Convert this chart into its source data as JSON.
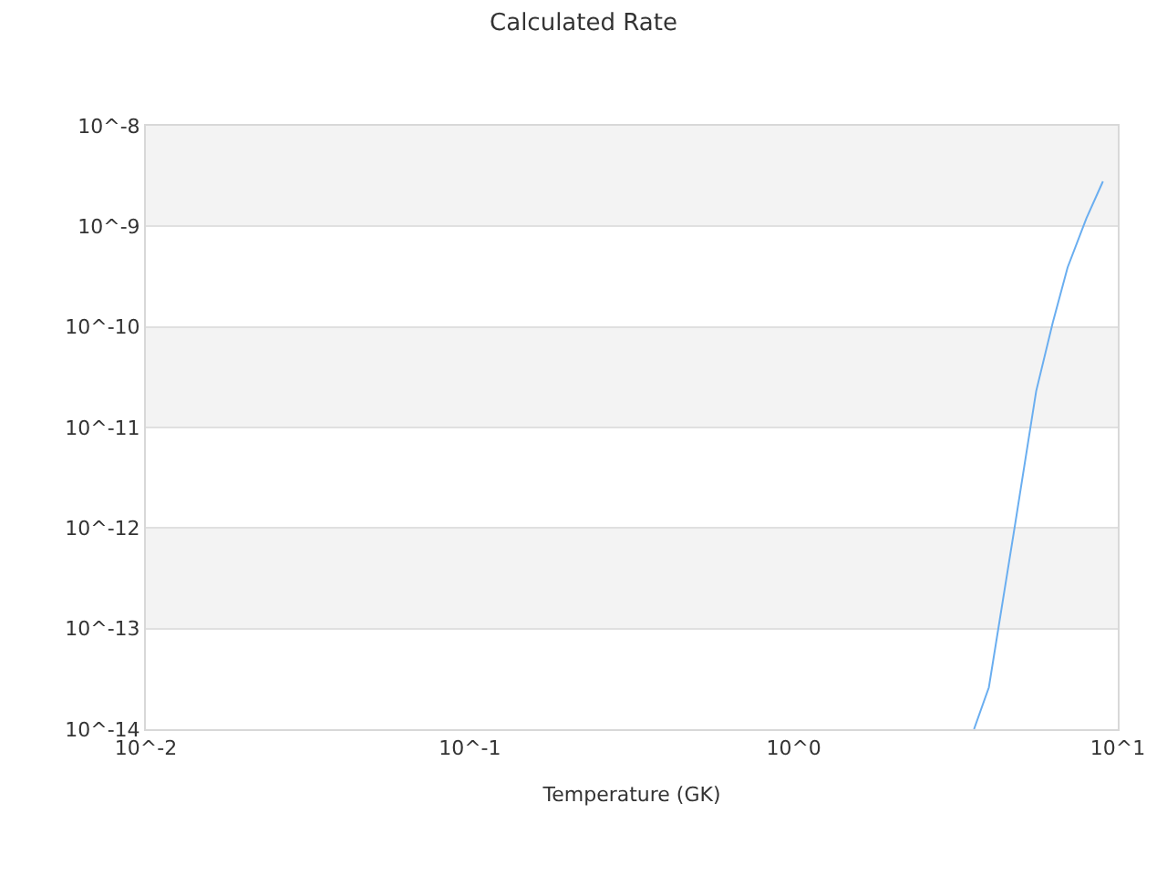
{
  "chart_data": {
    "type": "line",
    "title": "Calculated Rate",
    "xlabel": "Temperature (GK)",
    "x": [
      3.6,
      4.0,
      4.8,
      5.6,
      6.3,
      7.0,
      8.0,
      9.0
    ],
    "series": [
      {
        "color": "#6aaef0",
        "values": [
          1e-14,
          2.6e-14,
          1e-12,
          2.3e-11,
          1.1e-10,
          3.9e-10,
          1.2e-09,
          2.8e-09
        ]
      }
    ],
    "log": "xy",
    "xlim": [
      0.01,
      10
    ],
    "ylim": [
      1e-14,
      1e-08
    ],
    "xticks": [
      {
        "value": 0.01,
        "label": "10^-2"
      },
      {
        "value": 0.1,
        "label": "10^-1"
      },
      {
        "value": 1,
        "label": "10^0"
      },
      {
        "value": 10,
        "label": "10^1"
      }
    ],
    "yticks": [
      {
        "value": 1e-14,
        "label": "10^-14"
      },
      {
        "value": 1e-13,
        "label": "10^-13"
      },
      {
        "value": 1e-12,
        "label": "10^-12"
      },
      {
        "value": 1e-11,
        "label": "10^-11"
      },
      {
        "value": 1e-10,
        "label": "10^-10"
      },
      {
        "value": 1e-09,
        "label": "10^-9"
      },
      {
        "value": 1e-08,
        "label": "10^-8"
      }
    ],
    "grid": "y",
    "marker": "none",
    "line_style": "solid",
    "bands": [
      {
        "axis": "y",
        "from": 1e-09,
        "to": 1e-08,
        "color": "#f3f3f3"
      },
      {
        "axis": "y",
        "from": 1e-11,
        "to": 1e-10,
        "color": "#f3f3f3"
      },
      {
        "axis": "y",
        "from": 1e-13,
        "to": 1e-12,
        "color": "#f3f3f3"
      }
    ]
  }
}
